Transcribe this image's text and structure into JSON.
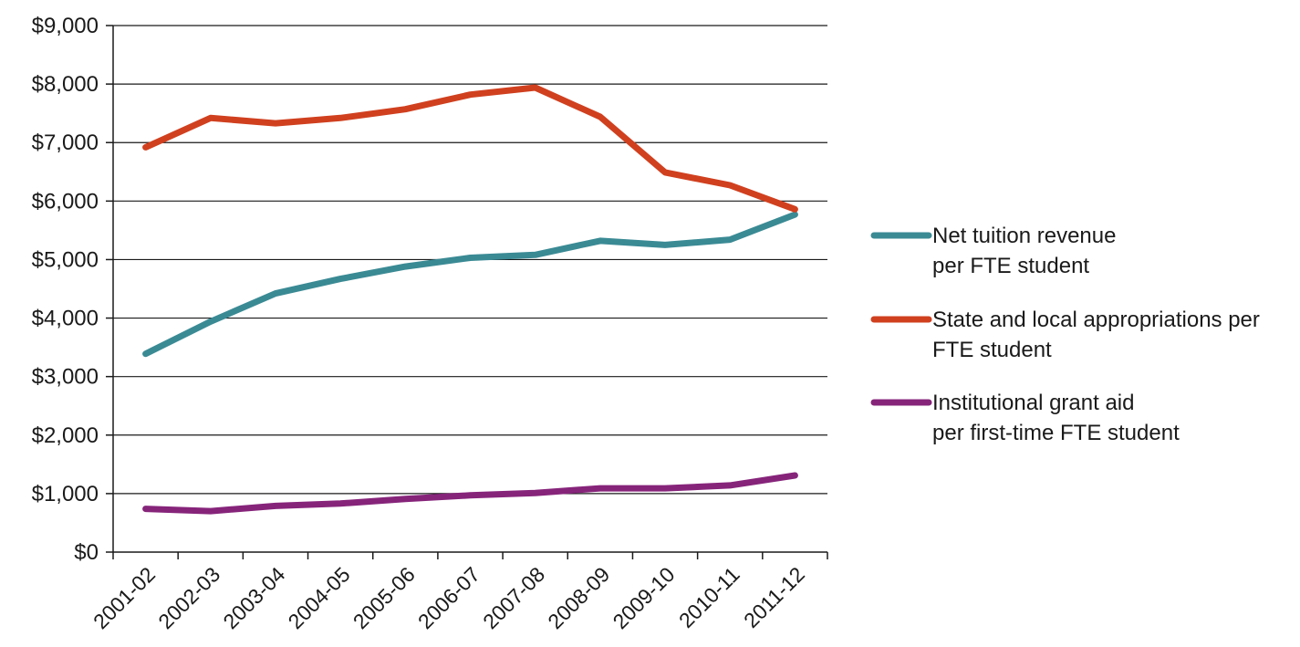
{
  "chart_data": {
    "type": "line",
    "categories": [
      "2001-02",
      "2002-03",
      "2003-04",
      "2004-05",
      "2005-06",
      "2006-07",
      "2007-08",
      "2008-09",
      "2009-10",
      "2010-11",
      "2011-12"
    ],
    "ylim": [
      0,
      9000
    ],
    "y_ticks": [
      0,
      1000,
      2000,
      3000,
      4000,
      5000,
      6000,
      7000,
      8000,
      9000
    ],
    "y_tick_labels": [
      "$0",
      "$1,000",
      "$2,000",
      "$3,000",
      "$4,000",
      "$5,000",
      "$6,000",
      "$7,000",
      "$8,000",
      "$9,000"
    ],
    "grid": true,
    "legend_position": "right",
    "series": [
      {
        "name_lines": [
          "Net tuition revenue",
          "per FTE student"
        ],
        "color": "#3a8a94",
        "values": [
          3390,
          3940,
          4420,
          4670,
          4880,
          5030,
          5080,
          5320,
          5250,
          5340,
          5770
        ]
      },
      {
        "name_lines": [
          "State and local appropriations per",
          "FTE student"
        ],
        "color": "#d0401f",
        "values": [
          6920,
          7420,
          7330,
          7420,
          7570,
          7820,
          7940,
          7440,
          6490,
          6270,
          5860
        ]
      },
      {
        "name_lines": [
          "Institutional grant aid",
          "per first-time FTE student"
        ],
        "color": "#86247a",
        "values": [
          740,
          700,
          790,
          830,
          910,
          970,
          1010,
          1090,
          1090,
          1140,
          1310
        ]
      }
    ]
  }
}
